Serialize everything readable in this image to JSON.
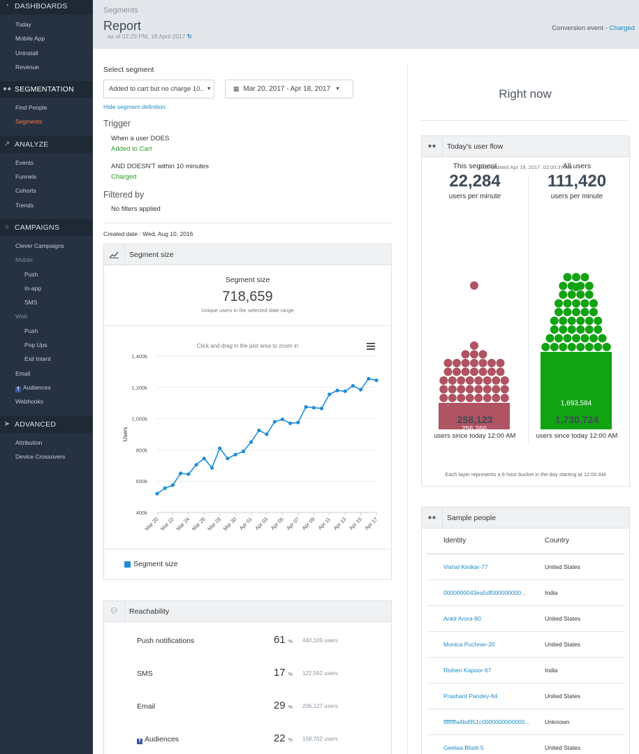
{
  "sidebar": {
    "sections": [
      {
        "label": "DASHBOARDS",
        "icon": "dashboard-icon",
        "items": [
          {
            "label": "Today"
          },
          {
            "label": "Mobile App"
          },
          {
            "label": "Uninstall"
          },
          {
            "label": "Revenue"
          }
        ]
      },
      {
        "label": "SEGMENTATION",
        "icon": "users-icon",
        "items": [
          {
            "label": "Find People"
          },
          {
            "label": "Segments",
            "active": true
          }
        ]
      },
      {
        "label": "ANALYZE",
        "icon": "chart-icon",
        "items": [
          {
            "label": "Events"
          },
          {
            "label": "Funnels"
          },
          {
            "label": "Cohorts"
          },
          {
            "label": "Trends"
          }
        ]
      },
      {
        "label": "CAMPAIGNS",
        "icon": "chat-icon",
        "items": [
          {
            "label": "Clever Campaigns"
          },
          {
            "label": "Mobile",
            "heading": true
          },
          {
            "label": "Push",
            "sub": true
          },
          {
            "label": "In-app",
            "sub": true
          },
          {
            "label": "SMS",
            "sub": true
          },
          {
            "label": "Web",
            "heading": true
          },
          {
            "label": "Push",
            "sub": true
          },
          {
            "label": "Pop Ups",
            "sub": true
          },
          {
            "label": "Exit Intent",
            "sub": true
          },
          {
            "label": "Email"
          },
          {
            "label": "Audiences",
            "fb": true
          },
          {
            "label": "Webhooks"
          }
        ]
      },
      {
        "label": "ADVANCED",
        "icon": "rocket-icon",
        "items": [
          {
            "label": "Attribution"
          },
          {
            "label": "Device Crossovers"
          }
        ]
      }
    ]
  },
  "header": {
    "breadcrumb": "Segments",
    "title": "Report",
    "as_of": "as of 02:29 PM, 18 April 2017",
    "conversion_label": "Conversion event - ",
    "conversion_event": "Charged"
  },
  "segment": {
    "select_label": "Select segment",
    "selected": "Added to cart but no charge 10..",
    "date_range": "Mar 20, 2017 - Apr 18, 2017",
    "hide_link": "Hide segment definition",
    "trigger_title": "Trigger",
    "when_label": "When a user DOES",
    "when_event": "Added to Cart",
    "and_label": "AND DOESN'T within 10 minutes",
    "and_event": "Charged",
    "filtered_title": "Filtered by",
    "filters": "No filters applied",
    "created": "Created date : Wed, Aug 10, 2016"
  },
  "segment_size": {
    "panel_title": "Segment size",
    "label": "Segment size",
    "value": "718,659",
    "caption": "Unique users in the selected date range",
    "zoom_hint": "Click and drag in the plot area to zoom in",
    "legend": "Segment size"
  },
  "chart_data": {
    "type": "line",
    "title": "",
    "xlabel": "",
    "ylabel": "Users",
    "ylim": [
      400000,
      1400000
    ],
    "yticks": [
      "400k",
      "600k",
      "800k",
      "1,000k",
      "1,200k",
      "1,400k"
    ],
    "xticks": [
      "Mar 20",
      "Mar 22",
      "Mar 24",
      "Mar 26",
      "Mar 28",
      "Mar 30",
      "Apr 01",
      "Apr 03",
      "Apr 05",
      "Apr 07",
      "Apr 09",
      "Apr 11",
      "Apr 13",
      "Apr 15",
      "Apr 17"
    ],
    "x": [
      "Mar 20",
      "Mar 21",
      "Mar 22",
      "Mar 23",
      "Mar 24",
      "Mar 25",
      "Mar 26",
      "Mar 27",
      "Mar 28",
      "Mar 29",
      "Mar 30",
      "Mar 31",
      "Apr 01",
      "Apr 02",
      "Apr 03",
      "Apr 04",
      "Apr 05",
      "Apr 06",
      "Apr 07",
      "Apr 08",
      "Apr 09",
      "Apr 10",
      "Apr 11",
      "Apr 12",
      "Apr 13",
      "Apr 14",
      "Apr 15",
      "Apr 16",
      "Apr 17"
    ],
    "series": [
      {
        "name": "Segment size",
        "color": "#1f8dd6",
        "values": [
          520000,
          555000,
          575000,
          650000,
          645000,
          705000,
          745000,
          685000,
          810000,
          745000,
          770000,
          790000,
          850000,
          925000,
          900000,
          980000,
          995000,
          970000,
          975000,
          1075000,
          1070000,
          1065000,
          1155000,
          1180000,
          1175000,
          1210000,
          1185000,
          1255000,
          1245000
        ]
      }
    ]
  },
  "reachability": {
    "panel_title": "Reachability",
    "rows": [
      {
        "label": "Push notifications",
        "pct": "61",
        "users": "440,109 users"
      },
      {
        "label": "SMS",
        "pct": "17",
        "users": "122,562 users"
      },
      {
        "label": "Email",
        "pct": "29",
        "users": "206,127 users"
      },
      {
        "label": "Audiences",
        "pct": "22",
        "users": "159,702 users",
        "fb": true
      }
    ],
    "pct_unit": "%"
  },
  "right_now": {
    "title": "Right now",
    "flow": {
      "panel_title": "Today's user flow",
      "updated": "Last updated Apr 18, 2017, 02:00:37 AM",
      "this": {
        "title": "This segment",
        "rate": "22,284",
        "unit": "users per minute",
        "bar": "256,266",
        "total": "258,123",
        "since": "users since today 12:00 AM",
        "color": "#b05362"
      },
      "all": {
        "title": "All users",
        "rate": "111,420",
        "unit": "users per minute",
        "bar": "1,693,584",
        "total": "1,730,724",
        "since": "users since today 12:00 AM",
        "color": "#12a312"
      },
      "footnote": "Each layer represents a 6 hour bucket in the day starting at 12:00 AM"
    },
    "sample": {
      "panel_title": "Sample people",
      "col_identity": "Identity",
      "col_country": "Country",
      "rows": [
        {
          "identity": "Vishal Kinikar-77",
          "country": "United States"
        },
        {
          "identity": "0000000043ea5df000000000...",
          "country": "India"
        },
        {
          "identity": "Ankit Arora-80",
          "country": "United States"
        },
        {
          "identity": "Monica Puchner-20",
          "country": "United States"
        },
        {
          "identity": "Rishen Kapoor-67",
          "country": "India"
        },
        {
          "identity": "Prashant Pandey-64",
          "country": "United States"
        },
        {
          "identity": "ffffffffa4bd951c0000000000000...",
          "country": "Unknown"
        },
        {
          "identity": "Geetaa Bhatt-5",
          "country": "United States"
        }
      ]
    }
  }
}
